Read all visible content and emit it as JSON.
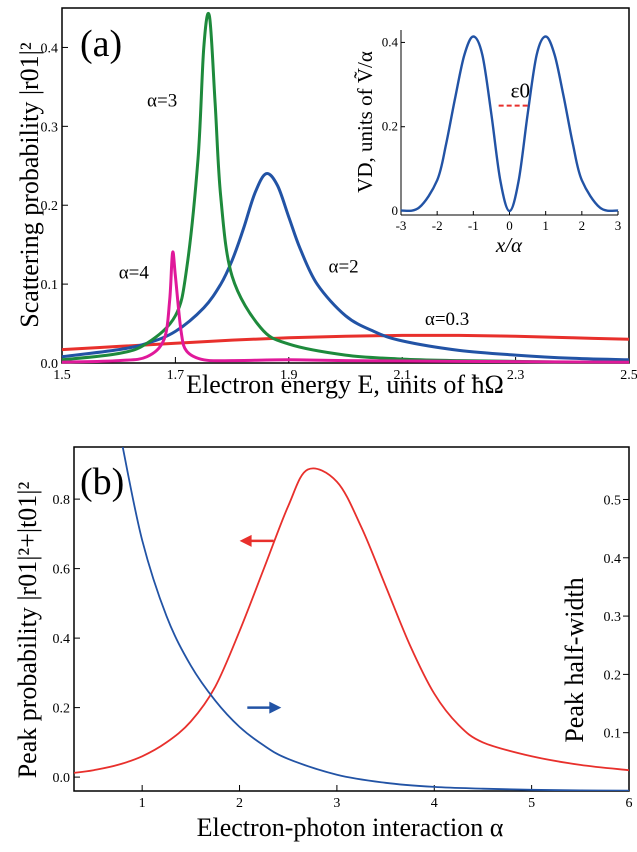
{
  "chart_data": [
    {
      "type": "line",
      "panel_label": "(a)",
      "xlabel": "Electron energy E, units of ħΩ",
      "ylabel": "Scattering probability |r01|²",
      "xlim": [
        1.5,
        2.5
      ],
      "ylim": [
        0,
        0.45
      ],
      "xticks": [
        "1.5",
        "1.7",
        "1.9",
        "2.1",
        "2.3",
        "2.5"
      ],
      "yticks": [
        "0.0",
        "0.1",
        "0.2",
        "0.3",
        "0.4"
      ],
      "series": [
        {
          "name": "α=0.3",
          "color": "#e8302c",
          "x": [
            1.5,
            1.6,
            1.7,
            1.8,
            1.9,
            2.0,
            2.1,
            2.2,
            2.3,
            2.4,
            2.5
          ],
          "y": [
            0.017,
            0.021,
            0.025,
            0.029,
            0.032,
            0.034,
            0.035,
            0.035,
            0.034,
            0.032,
            0.03
          ]
        },
        {
          "name": "α=2",
          "color": "#2253a5",
          "x": [
            1.5,
            1.6,
            1.65,
            1.7,
            1.75,
            1.78,
            1.8,
            1.82,
            1.84,
            1.86,
            1.88,
            1.9,
            1.92,
            1.95,
            2.0,
            2.05,
            2.1,
            2.2,
            2.3,
            2.4,
            2.5
          ],
          "y": [
            0.008,
            0.017,
            0.025,
            0.04,
            0.07,
            0.1,
            0.13,
            0.17,
            0.215,
            0.24,
            0.225,
            0.185,
            0.145,
            0.1,
            0.06,
            0.04,
            0.028,
            0.016,
            0.01,
            0.006,
            0.004
          ]
        },
        {
          "name": "α=3",
          "color": "#1e8a3c",
          "x": [
            1.5,
            1.6,
            1.65,
            1.7,
            1.72,
            1.74,
            1.75,
            1.76,
            1.77,
            1.78,
            1.8,
            1.85,
            1.9,
            2.0,
            2.1,
            2.2,
            2.3,
            2.4,
            2.5
          ],
          "y": [
            0.004,
            0.012,
            0.025,
            0.06,
            0.12,
            0.26,
            0.4,
            0.44,
            0.33,
            0.21,
            0.11,
            0.045,
            0.024,
            0.01,
            0.005,
            0.003,
            0.002,
            0.001,
            0.001
          ]
        },
        {
          "name": "α=4",
          "color": "#e0199a",
          "x": [
            1.5,
            1.6,
            1.65,
            1.68,
            1.69,
            1.695,
            1.7,
            1.71,
            1.72,
            1.75,
            1.8,
            1.9,
            2.0,
            2.2,
            2.5
          ],
          "y": [
            0.001,
            0.003,
            0.008,
            0.03,
            0.08,
            0.14,
            0.11,
            0.04,
            0.015,
            0.004,
            0.003,
            0.004,
            0.003,
            0.002,
            0.001
          ]
        }
      ],
      "inset": {
        "xlabel": "x/α",
        "ylabel": "VD, units of Ṽ/α",
        "annotation": "ε0",
        "xlim": [
          -3,
          3
        ],
        "ylim": [
          0,
          0.42
        ],
        "xticks": [
          "-3",
          "-2",
          "-1",
          "0",
          "1",
          "2",
          "3"
        ],
        "yticks": [
          "0",
          "0.2",
          "0.4"
        ],
        "color": "#2253a5",
        "level_color": "#e8302c",
        "level_x": [
          -0.3,
          0.55
        ],
        "level_y": 0.25,
        "x": [
          -3,
          -2.5,
          -2,
          -1.75,
          -1.5,
          -1.25,
          -1,
          -0.75,
          -0.5,
          -0.25,
          0,
          0.25,
          0.5,
          0.75,
          1,
          1.25,
          1.5,
          1.75,
          2,
          2.5,
          3
        ],
        "y": [
          0.001,
          0.008,
          0.073,
          0.16,
          0.27,
          0.37,
          0.414,
          0.37,
          0.229,
          0.07,
          0,
          0.07,
          0.229,
          0.37,
          0.414,
          0.37,
          0.27,
          0.16,
          0.073,
          0.008,
          0.001
        ]
      },
      "labels": [
        {
          "text": "α=3",
          "x": 1.65,
          "y": 0.325
        },
        {
          "text": "α=2",
          "x": 1.97,
          "y": 0.115
        },
        {
          "text": "α=4",
          "x": 1.6,
          "y": 0.107
        },
        {
          "text": "α=0.3",
          "x": 2.14,
          "y": 0.048
        }
      ]
    },
    {
      "type": "line",
      "panel_label": "(b)",
      "xlabel": "Electron-photon interaction α",
      "ylabel": "Peak probability |r01|²+|t01|²",
      "ylabel_right": "Peak half-width",
      "xlim": [
        0.3,
        6
      ],
      "ylim": [
        -0.04,
        0.95
      ],
      "ylim_right": [
        0.0,
        0.59
      ],
      "xticks": [
        "1",
        "2",
        "3",
        "4",
        "5",
        "6"
      ],
      "yticks": [
        "0.0",
        "0.2",
        "0.4",
        "0.6",
        "0.8"
      ],
      "yticks_right": [
        "0.1",
        "0.2",
        "0.3",
        "0.4",
        "0.5"
      ],
      "series": [
        {
          "name": "Peak probability",
          "axis": "left",
          "color": "#e8302c",
          "x": [
            0.3,
            0.5,
            0.75,
            1,
            1.25,
            1.5,
            1.75,
            2,
            2.25,
            2.5,
            2.7,
            3,
            3.25,
            3.5,
            3.75,
            4,
            4.25,
            4.5,
            5,
            5.5,
            6
          ],
          "y": [
            0.012,
            0.02,
            0.035,
            0.06,
            0.1,
            0.16,
            0.26,
            0.42,
            0.6,
            0.78,
            0.885,
            0.85,
            0.72,
            0.55,
            0.38,
            0.24,
            0.15,
            0.1,
            0.06,
            0.035,
            0.02
          ]
        },
        {
          "name": "Peak half-width",
          "axis": "right",
          "color": "#2253a5",
          "x": [
            0.8,
            1,
            1.25,
            1.5,
            1.75,
            2,
            2.25,
            2.5,
            3,
            3.5,
            4,
            4.5,
            5,
            5.5,
            6
          ],
          "y": [
            0.59,
            0.43,
            0.3,
            0.215,
            0.155,
            0.11,
            0.078,
            0.055,
            0.028,
            0.014,
            0.007,
            0.004,
            0.002,
            0.001,
            0.0005
          ]
        }
      ],
      "arrows": [
        {
          "direction": "left",
          "color": "#e8302c",
          "x": 2.35,
          "y": 0.68
        },
        {
          "direction": "right",
          "color": "#2253a5",
          "x": 2.08,
          "y": 0.2
        }
      ]
    }
  ]
}
